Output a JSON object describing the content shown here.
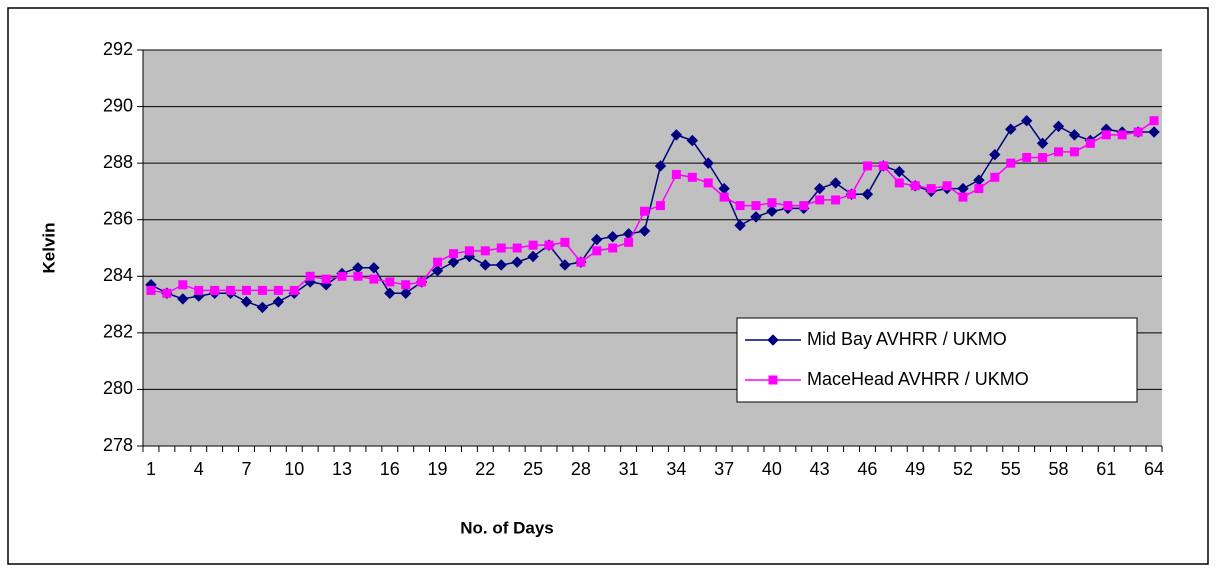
{
  "chart_data": {
    "type": "line",
    "x_label": "No. of Days",
    "y_label": "Kelvin",
    "categories": [
      "1",
      null,
      null,
      "4",
      null,
      null,
      "7",
      null,
      null,
      "10",
      null,
      null,
      "13",
      null,
      null,
      "16",
      null,
      null,
      "19",
      null,
      null,
      "22",
      null,
      null,
      "25",
      null,
      null,
      "28",
      null,
      null,
      "31",
      null,
      null,
      "34",
      null,
      null,
      "37",
      null,
      null,
      "40",
      null,
      null,
      "43",
      null,
      null,
      "46",
      null,
      null,
      "49",
      null,
      null,
      "52",
      null,
      null,
      "55",
      null,
      null,
      "58",
      null,
      null,
      "61",
      null,
      null,
      "64"
    ],
    "ylim": [
      278,
      292
    ],
    "yticks": [
      278,
      280,
      282,
      284,
      286,
      288,
      290,
      292
    ],
    "grid": true,
    "legend": "lower right",
    "series": [
      {
        "name": "Mid Bay AVHRR / UKMO",
        "color": "#000080",
        "marker": "diamond",
        "values": [
          283.7,
          283.4,
          283.2,
          283.3,
          283.4,
          283.4,
          283.1,
          282.9,
          283.1,
          283.4,
          283.8,
          283.7,
          284.1,
          284.3,
          284.3,
          283.4,
          283.4,
          283.8,
          284.2,
          284.5,
          284.7,
          284.4,
          284.4,
          284.5,
          284.7,
          285.1,
          284.4,
          284.5,
          285.3,
          285.4,
          285.5,
          285.6,
          287.9,
          289.0,
          288.8,
          288.0,
          287.1,
          285.8,
          286.1,
          286.3,
          286.4,
          286.4,
          287.1,
          287.3,
          286.9,
          286.9,
          287.9,
          287.7,
          287.2,
          287.0,
          287.1,
          287.1,
          287.4,
          288.3,
          289.2,
          289.5,
          288.7,
          289.3,
          289.0,
          288.8,
          289.2,
          289.1,
          289.1,
          289.1
        ]
      },
      {
        "name": "MaceHead AVHRR / UKMO",
        "color": "#ff00ff",
        "marker": "square",
        "values": [
          283.5,
          283.4,
          283.7,
          283.5,
          283.5,
          283.5,
          283.5,
          283.5,
          283.5,
          283.5,
          284.0,
          283.9,
          284.0,
          284.0,
          283.9,
          283.8,
          283.7,
          283.8,
          284.5,
          284.8,
          284.9,
          284.9,
          285.0,
          285.0,
          285.1,
          285.1,
          285.2,
          284.5,
          284.9,
          285.0,
          285.2,
          286.3,
          286.5,
          287.6,
          287.5,
          287.3,
          286.8,
          286.5,
          286.5,
          286.6,
          286.5,
          286.5,
          286.7,
          286.7,
          286.9,
          287.9,
          287.9,
          287.3,
          287.2,
          287.1,
          287.2,
          286.8,
          287.1,
          287.5,
          288.0,
          288.2,
          288.2,
          288.4,
          288.4,
          288.7,
          289.0,
          289.0,
          289.1,
          289.5
        ]
      }
    ]
  }
}
